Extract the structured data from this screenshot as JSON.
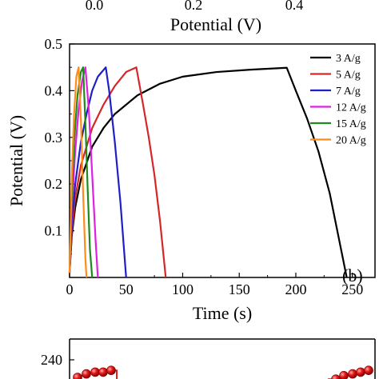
{
  "top_strip": {
    "tick_labels": [
      "0.0",
      "0.2",
      "0.4"
    ],
    "xlabel": "Potential (V)"
  },
  "chart_data": {
    "type": "line",
    "xlabel": "Time (s)",
    "ylabel": "Potential (V)",
    "xlim": [
      0,
      270
    ],
    "ylim": [
      0.0,
      0.5
    ],
    "xticks": [
      0,
      50,
      100,
      150,
      200,
      250
    ],
    "yticks": [
      0.1,
      0.2,
      0.3,
      0.4,
      0.5
    ],
    "panel_label": "(b)",
    "legend_position": "top-right",
    "series": [
      {
        "name": "3 A/g",
        "color": "#000000",
        "x": [
          0,
          2,
          5,
          10,
          20,
          30,
          40,
          60,
          80,
          100,
          130,
          160,
          192,
          200,
          210,
          220,
          230,
          240,
          245
        ],
        "y": [
          0.01,
          0.09,
          0.15,
          0.21,
          0.28,
          0.32,
          0.35,
          0.39,
          0.415,
          0.43,
          0.44,
          0.445,
          0.449,
          0.4,
          0.34,
          0.27,
          0.18,
          0.06,
          0.0
        ]
      },
      {
        "name": "5 A/g",
        "color": "#d62728",
        "x": [
          0,
          2,
          5,
          10,
          20,
          30,
          40,
          50,
          59,
          65,
          70,
          75,
          80,
          85
        ],
        "y": [
          0.01,
          0.1,
          0.17,
          0.24,
          0.32,
          0.37,
          0.41,
          0.44,
          0.45,
          0.37,
          0.3,
          0.22,
          0.12,
          0.0
        ]
      },
      {
        "name": "7 A/g",
        "color": "#1f1fc8",
        "x": [
          0,
          2,
          5,
          10,
          15,
          20,
          25,
          32,
          35,
          40,
          45,
          50
        ],
        "y": [
          0.01,
          0.12,
          0.2,
          0.29,
          0.35,
          0.4,
          0.43,
          0.45,
          0.4,
          0.29,
          0.16,
          0.0
        ]
      },
      {
        "name": "12 A/g",
        "color": "#e020e0",
        "x": [
          0,
          2,
          5,
          8,
          11,
          14,
          17,
          20,
          23,
          25
        ],
        "y": [
          0.01,
          0.15,
          0.27,
          0.36,
          0.42,
          0.45,
          0.36,
          0.22,
          0.08,
          0.0
        ]
      },
      {
        "name": "15 A/g",
        "color": "#1f8a1f",
        "x": [
          0,
          2,
          4,
          7,
          10,
          12,
          14,
          16,
          18,
          20
        ],
        "y": [
          0.01,
          0.18,
          0.29,
          0.39,
          0.44,
          0.45,
          0.33,
          0.19,
          0.06,
          0.0
        ]
      },
      {
        "name": "20 A/g",
        "color": "#ff8c1a",
        "x": [
          0,
          2,
          4,
          6,
          8,
          10,
          12,
          14,
          15
        ],
        "y": [
          0.01,
          0.22,
          0.35,
          0.43,
          0.45,
          0.34,
          0.18,
          0.04,
          0.0
        ]
      }
    ]
  },
  "bottom_strip": {
    "tick_label": "240",
    "marker_color": "#e81c1c",
    "left_markers_y": [
      230,
      232,
      233,
      233,
      234
    ],
    "right_markers_y": [
      229,
      231,
      232,
      233,
      234
    ]
  }
}
